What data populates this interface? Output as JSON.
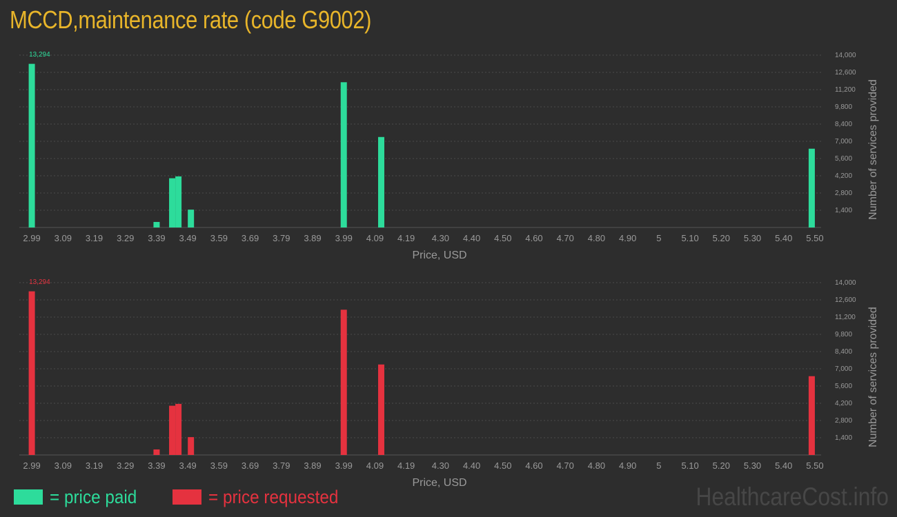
{
  "title": "MCCD,maintenance rate (code G9002)",
  "legend": {
    "paid": {
      "label": "= price paid",
      "color": "#2ddc9b"
    },
    "requested": {
      "label": "= price requested",
      "color": "#e5323f"
    }
  },
  "watermark": "HealthcareCost.info",
  "chart_data": [
    {
      "type": "bar",
      "name": "price paid",
      "color": "#2ddc9b",
      "xlabel": "Price, USD",
      "ylabel": "Number of services provided",
      "ylim": [
        0,
        14000
      ],
      "x_ticks": [
        "2.99",
        "3.09",
        "3.19",
        "3.29",
        "3.39",
        "3.49",
        "3.59",
        "3.69",
        "3.79",
        "3.89",
        "3.99",
        "4.09",
        "4.19",
        "4.30",
        "4.40",
        "4.50",
        "4.60",
        "4.70",
        "4.80",
        "4.90",
        "5",
        "5.10",
        "5.20",
        "5.30",
        "5.40",
        "5.50"
      ],
      "y_ticks": [
        "1,400",
        "2,800",
        "4,200",
        "5,600",
        "7,000",
        "8,400",
        "9,800",
        "11,200",
        "12,600",
        "14,000"
      ],
      "max_label": "13,294",
      "bars": [
        {
          "x": 2.99,
          "y": 13294
        },
        {
          "x": 3.39,
          "y": 450
        },
        {
          "x": 3.44,
          "y": 4000
        },
        {
          "x": 3.46,
          "y": 4150
        },
        {
          "x": 3.5,
          "y": 1450
        },
        {
          "x": 3.99,
          "y": 11800
        },
        {
          "x": 4.11,
          "y": 7350
        },
        {
          "x": 5.49,
          "y": 6400
        }
      ]
    },
    {
      "type": "bar",
      "name": "price requested",
      "color": "#e5323f",
      "xlabel": "Price, USD",
      "ylabel": "Number of services provided",
      "ylim": [
        0,
        14000
      ],
      "x_ticks": [
        "2.99",
        "3.09",
        "3.19",
        "3.29",
        "3.39",
        "3.49",
        "3.59",
        "3.69",
        "3.79",
        "3.89",
        "3.99",
        "4.09",
        "4.19",
        "4.30",
        "4.40",
        "4.50",
        "4.60",
        "4.70",
        "4.80",
        "4.90",
        "5",
        "5.10",
        "5.20",
        "5.30",
        "5.40",
        "5.50"
      ],
      "y_ticks": [
        "1,400",
        "2,800",
        "4,200",
        "5,600",
        "7,000",
        "8,400",
        "9,800",
        "11,200",
        "12,600",
        "14,000"
      ],
      "max_label": "13,294",
      "bars": [
        {
          "x": 2.99,
          "y": 13294
        },
        {
          "x": 3.39,
          "y": 450
        },
        {
          "x": 3.44,
          "y": 4000
        },
        {
          "x": 3.46,
          "y": 4150
        },
        {
          "x": 3.5,
          "y": 1450
        },
        {
          "x": 3.99,
          "y": 11800
        },
        {
          "x": 4.11,
          "y": 7350
        },
        {
          "x": 5.49,
          "y": 6400
        }
      ]
    }
  ]
}
